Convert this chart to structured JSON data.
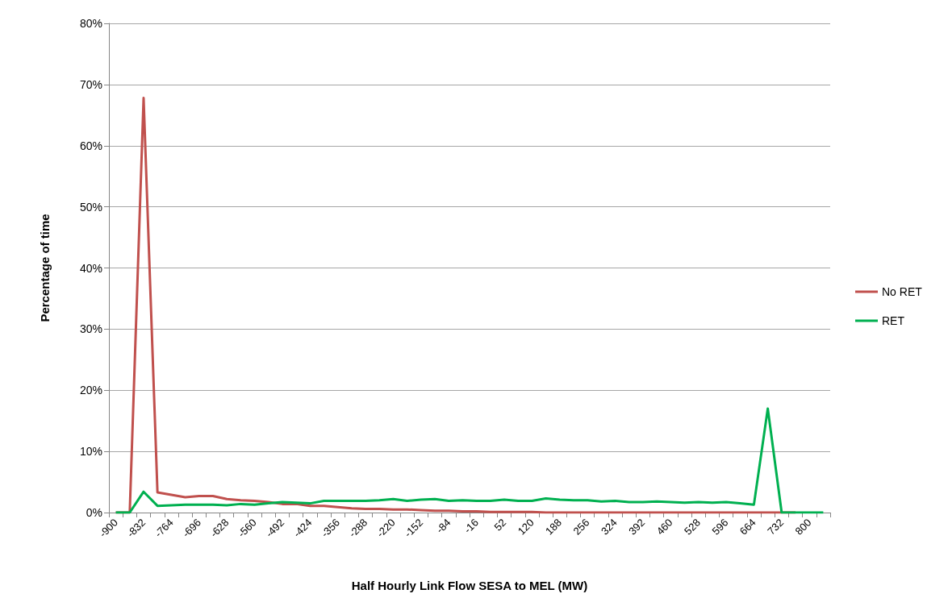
{
  "chart_data": {
    "type": "line",
    "xlabel": "Half Hourly Link Flow SESA to MEL (MW)",
    "ylabel": "Percentage of time",
    "categories": [
      "-900",
      null,
      "-832",
      null,
      "-764",
      null,
      "-696",
      null,
      "-628",
      null,
      "-560",
      null,
      "-492",
      null,
      "-424",
      null,
      "-356",
      null,
      "-288",
      null,
      "-220",
      null,
      "-152",
      null,
      "-84",
      null,
      "-16",
      null,
      "52",
      null,
      "120",
      null,
      "188",
      null,
      "256",
      null,
      "324",
      null,
      "392",
      null,
      "460",
      null,
      "528",
      null,
      "596",
      null,
      "664",
      null,
      "732",
      null,
      "800",
      null
    ],
    "series": [
      {
        "name": "No RET",
        "color": "#c0504d",
        "values": [
          0,
          0,
          67.8,
          3.3,
          2.9,
          2.5,
          2.7,
          2.7,
          2.2,
          2.0,
          1.9,
          1.7,
          1.4,
          1.4,
          1.1,
          1.1,
          0.9,
          0.7,
          0.6,
          0.6,
          0.5,
          0.5,
          0.4,
          0.3,
          0.3,
          0.2,
          0.2,
          0.1,
          0.1,
          0.1,
          0.1,
          0,
          0,
          0,
          0,
          0,
          0,
          0,
          0,
          0,
          0,
          0,
          0,
          0,
          0,
          0,
          0,
          0,
          0,
          0,
          null,
          null
        ]
      },
      {
        "name": "RET",
        "color": "#00b050",
        "values": [
          0,
          0,
          3.4,
          1.1,
          1.2,
          1.3,
          1.3,
          1.3,
          1.2,
          1.4,
          1.3,
          1.5,
          1.7,
          1.6,
          1.5,
          1.9,
          1.9,
          1.9,
          1.9,
          2.0,
          2.2,
          1.9,
          2.1,
          2.2,
          1.9,
          2.0,
          1.9,
          1.9,
          2.1,
          1.9,
          1.9,
          2.3,
          2.1,
          2.0,
          2.0,
          1.8,
          1.9,
          1.7,
          1.7,
          1.8,
          1.7,
          1.6,
          1.7,
          1.6,
          1.7,
          1.5,
          1.3,
          17.0,
          0,
          0,
          0,
          0
        ]
      }
    ],
    "ylim": [
      0,
      80
    ],
    "yticks": [
      {
        "value": 0,
        "label": "0%"
      },
      {
        "value": 10,
        "label": "10%"
      },
      {
        "value": 20,
        "label": "20%"
      },
      {
        "value": 30,
        "label": "30%"
      },
      {
        "value": 40,
        "label": "40%"
      },
      {
        "value": 50,
        "label": "50%"
      },
      {
        "value": 60,
        "label": "60%"
      },
      {
        "value": 70,
        "label": "70%"
      },
      {
        "value": 80,
        "label": "80%"
      }
    ],
    "grid": "y",
    "legend": "right",
    "marker": "none",
    "line_style": "solid"
  }
}
